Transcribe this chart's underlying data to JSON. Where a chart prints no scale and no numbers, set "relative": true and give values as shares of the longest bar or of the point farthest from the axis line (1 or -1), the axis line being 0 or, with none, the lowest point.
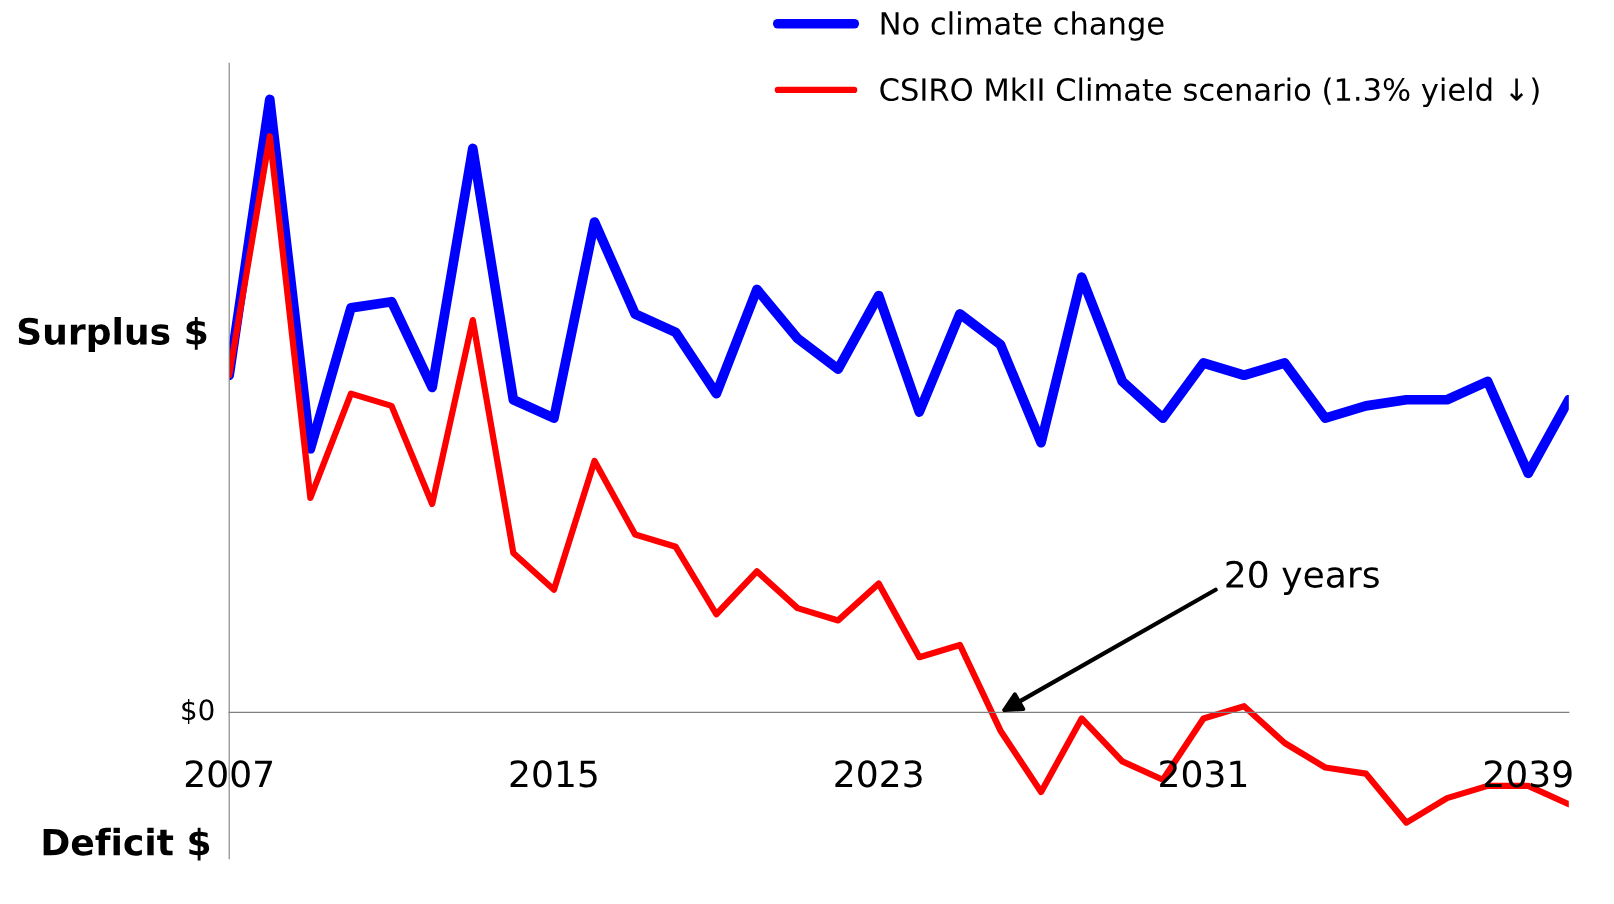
{
  "chart_data": {
    "type": "line",
    "relative": true,
    "categories": [
      "2007",
      null,
      null,
      null,
      null,
      null,
      null,
      null,
      "2015",
      null,
      null,
      null,
      null,
      null,
      null,
      null,
      "2023",
      null,
      null,
      null,
      null,
      null,
      null,
      null,
      "2031",
      null,
      null,
      null,
      null,
      null,
      null,
      null,
      "2039",
      null
    ],
    "series": [
      {
        "name": "No climate change",
        "color": "#0000ff",
        "values": [
          0.55,
          1.0,
          0.43,
          0.66,
          0.67,
          0.53,
          0.92,
          0.51,
          0.48,
          0.8,
          0.65,
          0.62,
          0.52,
          0.69,
          0.61,
          0.56,
          0.68,
          0.49,
          0.65,
          0.6,
          0.44,
          0.71,
          0.54,
          0.48,
          0.57,
          0.55,
          0.57,
          0.48,
          0.5,
          0.51,
          0.51,
          0.54,
          0.39,
          0.51
        ]
      },
      {
        "name": "CSIRO MkII Climate scenario (1.3% yield ↓)",
        "color": "#ff0000",
        "values": [
          0.55,
          0.94,
          0.35,
          0.52,
          0.5,
          0.34,
          0.64,
          0.26,
          0.2,
          0.41,
          0.29,
          0.27,
          0.16,
          0.23,
          0.17,
          0.15,
          0.21,
          0.09,
          0.11,
          -0.03,
          -0.13,
          -0.01,
          -0.08,
          -0.11,
          -0.01,
          0.01,
          -0.05,
          -0.09,
          -0.1,
          -0.18,
          -0.14,
          -0.12,
          -0.12,
          -0.15
        ]
      }
    ],
    "annotations": [
      "Surplus $",
      "Deficit $",
      "$0",
      "20 years"
    ],
    "legend": "top right",
    "line_style": "solid",
    "marker": "none"
  }
}
